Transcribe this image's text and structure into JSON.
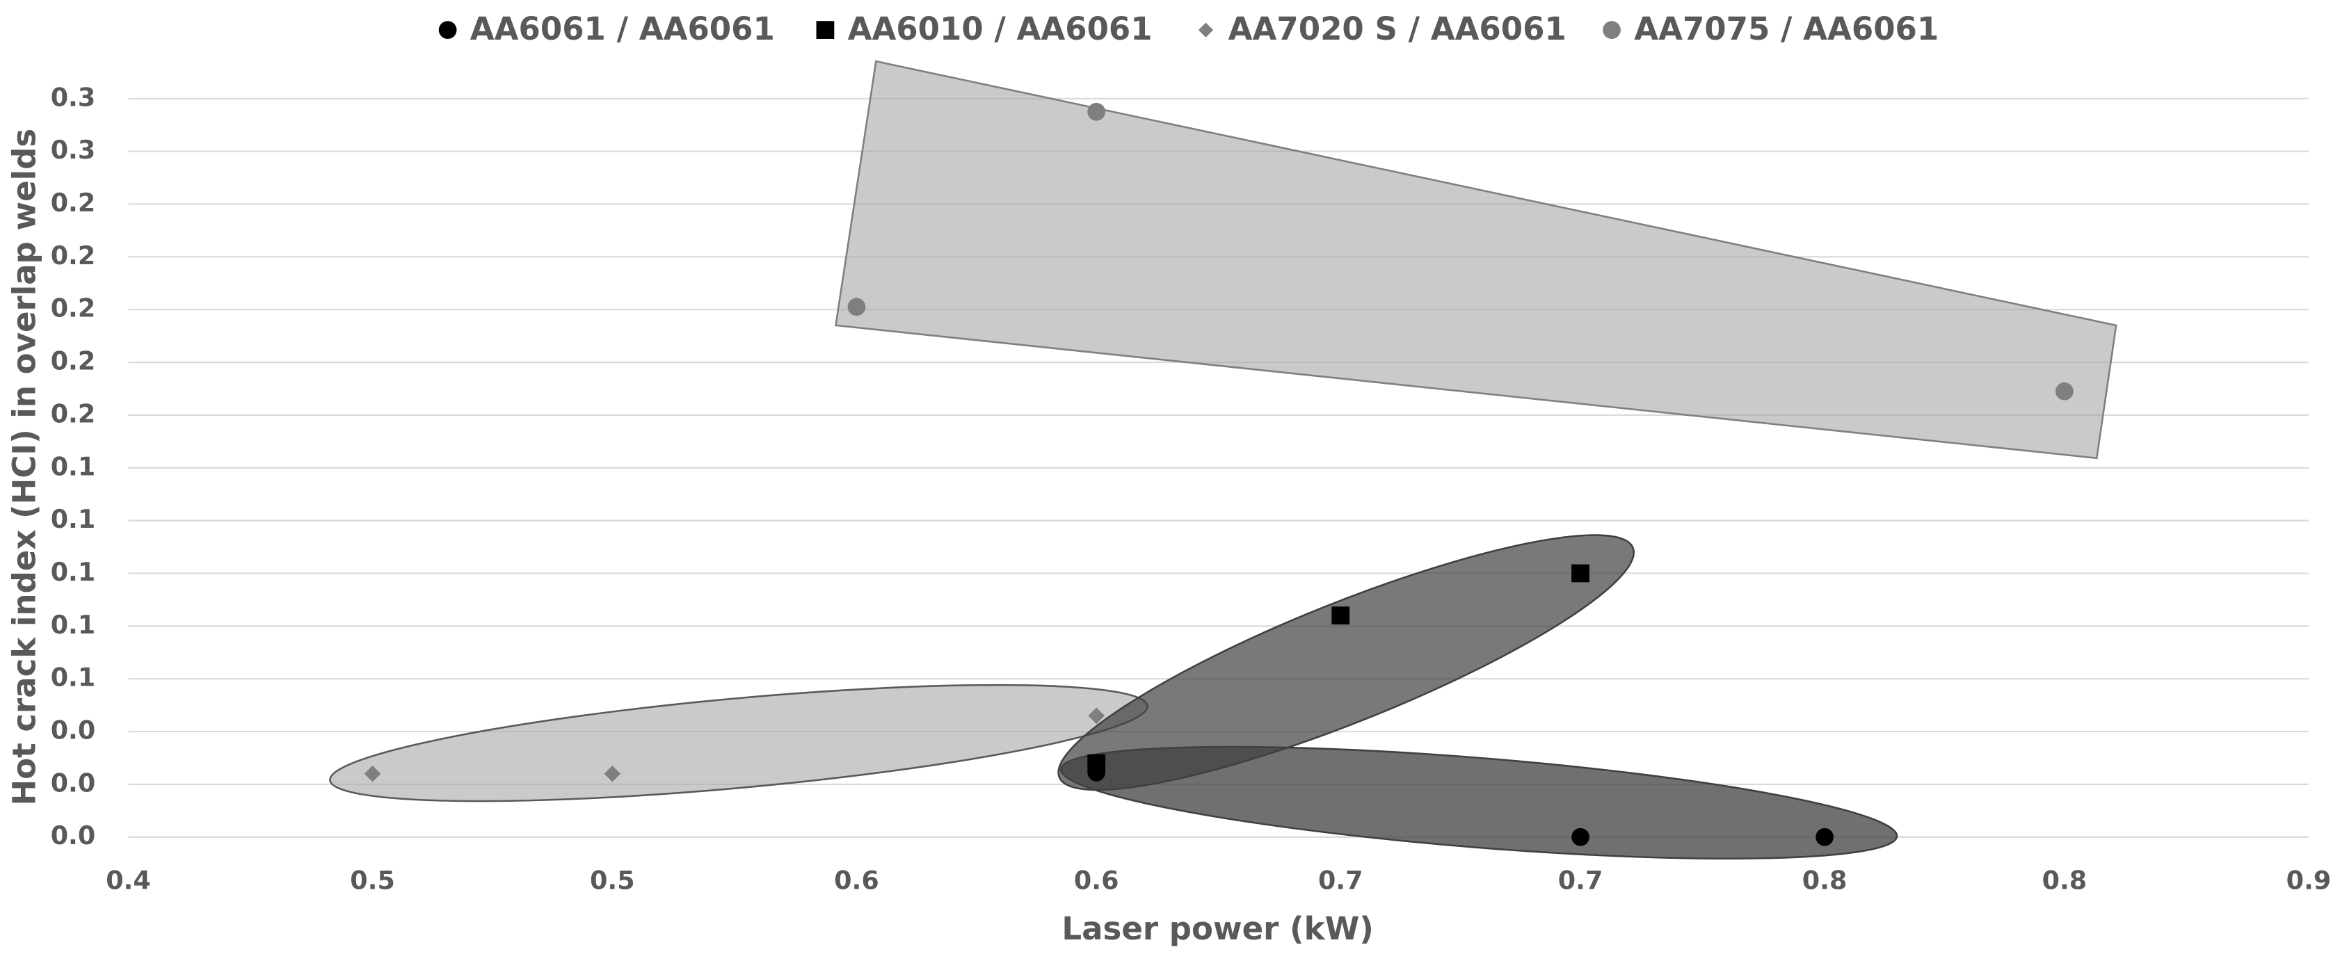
{
  "chart_data": {
    "type": "scatter",
    "xlabel": "Laser power (kW)",
    "ylabel": "Hot crack index (HCI) in overlap welds",
    "xlim": [
      0.4,
      0.9
    ],
    "xticks": [
      {
        "value": 0.4,
        "label": "0.4"
      },
      {
        "value": 0.456,
        "label": "0.5"
      },
      {
        "value": 0.511,
        "label": "0.5"
      },
      {
        "value": 0.567,
        "label": "0.6"
      },
      {
        "value": 0.622,
        "label": "0.6"
      },
      {
        "value": 0.678,
        "label": "0.7"
      },
      {
        "value": 0.733,
        "label": "0.7"
      },
      {
        "value": 0.789,
        "label": "0.8"
      },
      {
        "value": 0.844,
        "label": "0.8"
      },
      {
        "value": 0.9,
        "label": "0.9"
      }
    ],
    "ylim": [
      0,
      0.28
    ],
    "yticks": [
      {
        "value": 0,
        "label": "0.0"
      },
      {
        "value": 0.02,
        "label": "0.0"
      },
      {
        "value": 0.04,
        "label": "0.0"
      },
      {
        "value": 0.06,
        "label": "0.1"
      },
      {
        "value": 0.08,
        "label": "0.1"
      },
      {
        "value": 0.1,
        "label": "0.1"
      },
      {
        "value": 0.12,
        "label": "0.1"
      },
      {
        "value": 0.14,
        "label": "0.1"
      },
      {
        "value": 0.16,
        "label": "0.2"
      },
      {
        "value": 0.18,
        "label": "0.2"
      },
      {
        "value": 0.2,
        "label": "0.2"
      },
      {
        "value": 0.22,
        "label": "0.2"
      },
      {
        "value": 0.24,
        "label": "0.2"
      },
      {
        "value": 0.26,
        "label": "0.3"
      },
      {
        "value": 0.28,
        "label": "0.3"
      }
    ],
    "grid": true,
    "legend": "top",
    "series": [
      {
        "name": "AA6061 / AA6061",
        "color": "#000000",
        "marker": "circle",
        "x": [
          0.622,
          0.733,
          0.789
        ],
        "values": [
          0.0245,
          0.0,
          0.0
        ]
      },
      {
        "name": "AA6010 / AA6061",
        "color": "#000000",
        "marker": "square",
        "x": [
          0.622,
          0.678,
          0.733
        ],
        "values": [
          0.028,
          0.084,
          0.1
        ]
      },
      {
        "name": "AA7020 S / AA6061",
        "color": "#7f7f7f",
        "marker": "diamond",
        "x": [
          0.456,
          0.511,
          0.622
        ],
        "values": [
          0.024,
          0.024,
          0.046
        ]
      },
      {
        "name": "AA7075 / AA6061",
        "color": "#7f7f7f",
        "marker": "circle",
        "x": [
          0.567,
          0.622,
          0.844
        ],
        "values": [
          0.201,
          0.275,
          0.169
        ]
      }
    ]
  }
}
